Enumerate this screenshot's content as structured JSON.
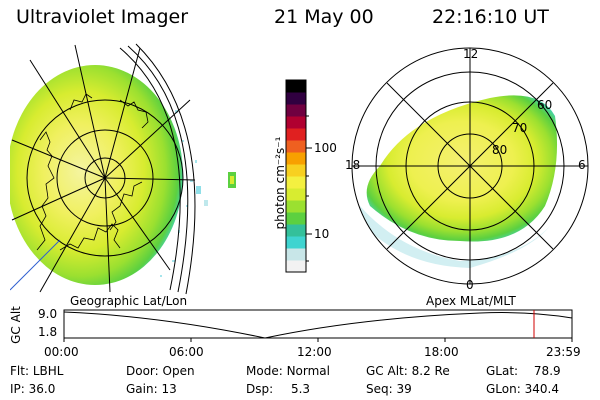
{
  "header": {
    "instrument": "Ultraviolet Imager",
    "date": "21 May 00",
    "time": "22:16:10 UT"
  },
  "colorbar": {
    "unit_label": "photon cm⁻²s⁻¹",
    "ticks": [
      {
        "label": "100",
        "value": 100
      },
      {
        "label": "10",
        "value": 10
      }
    ],
    "colors": [
      "#f2f2f2",
      "#c8e6e8",
      "#3fd4d0",
      "#34c09a",
      "#5cd040",
      "#9be030",
      "#d8ec30",
      "#f4f040",
      "#f8d020",
      "#f8a000",
      "#ef6020",
      "#e02020",
      "#b00030",
      "#700040",
      "#300040",
      "#000000"
    ]
  },
  "left_map": {
    "label": "Geographic Lat/Lon"
  },
  "right_map": {
    "label": "Apex MLat/MLT",
    "mlt_labels": {
      "top": "12",
      "left": "18",
      "right": "6",
      "bottom": "0"
    },
    "lat_labels": [
      "60",
      "70",
      "80"
    ]
  },
  "timeline": {
    "ylabel": "GC Alt",
    "yticks": [
      "9.0",
      "1.8"
    ],
    "xticks": [
      "00:00",
      "06:00",
      "12:00",
      "18:00",
      "23:59"
    ],
    "marker_color": "#d00000"
  },
  "info": {
    "row1": [
      {
        "label": "Flt:",
        "value": "LBHL"
      },
      {
        "label": "Door:",
        "value": "Open"
      },
      {
        "label": "Mode:",
        "value": "Normal"
      },
      {
        "label": "GC Alt:",
        "value": "8.2 Re"
      },
      {
        "label": "GLat:",
        "value": "78.9"
      }
    ],
    "row2": [
      {
        "label": "IP:",
        "value": "36.0"
      },
      {
        "label": "Gain:",
        "value": "13"
      },
      {
        "label": "Dsp:",
        "value": "5.3"
      },
      {
        "label": "Seq:",
        "value": "39"
      },
      {
        "label": "GLon:",
        "value": "340.4"
      }
    ]
  }
}
